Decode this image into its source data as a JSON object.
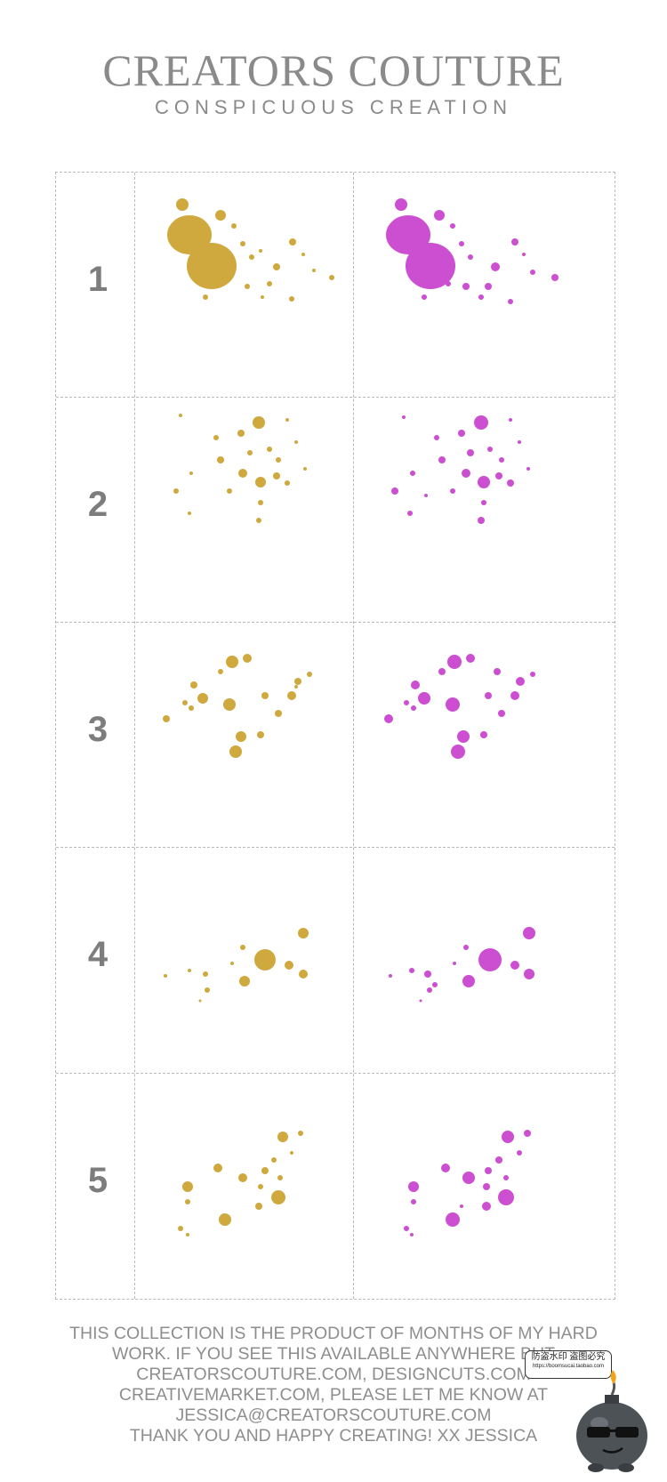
{
  "header": {
    "title": "CREATORS COUTURE",
    "subtitle": "CONSPICUOUS CREATION"
  },
  "rows": [
    {
      "number": "1"
    },
    {
      "number": "2"
    },
    {
      "number": "3"
    },
    {
      "number": "4"
    },
    {
      "number": "5"
    }
  ],
  "colors": {
    "gold": "#cfa93e",
    "pink": "#cc4fd1",
    "grid_line": "#b9b9b9",
    "text": "#8a8a8a"
  },
  "footer": {
    "lines": [
      "THIS COLLECTION IS THE PRODUCT OF MONTHS OF MY HARD",
      "WORK. IF YOU SEE THIS AVAILABLE ANYWHERE BUT",
      "CREATORSCOUTURE.COM, DESIGNCUTS.COM",
      "CREATIVEMARKET.COM, PLEASE LET ME KNOW AT",
      "JESSICA@CREATORSCOUTURE.COM",
      "THANK YOU AND HAPPY CREATING! XX JESSICA"
    ]
  },
  "watermark": {
    "text": "防盗水印 盗图必究",
    "url": "https://boomsucai.taobao.com"
  }
}
